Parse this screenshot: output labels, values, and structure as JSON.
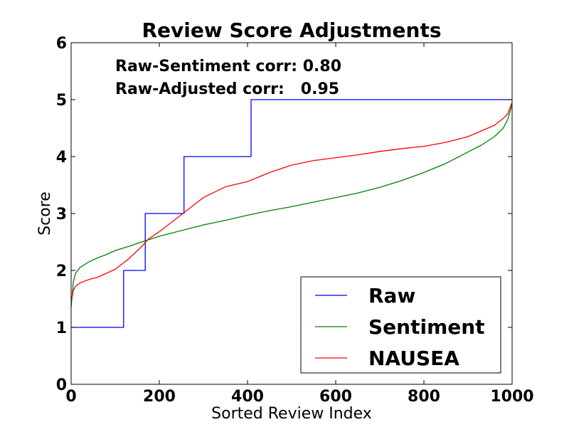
{
  "chart_data": {
    "type": "line",
    "title": "Review Score Adjustments",
    "xlabel": "Sorted Review Index",
    "ylabel": "Score",
    "xlim": [
      0,
      1000
    ],
    "ylim": [
      0,
      6
    ],
    "xticks": [
      0,
      200,
      400,
      600,
      800,
      1000
    ],
    "yticks": [
      0,
      1,
      2,
      3,
      4,
      5,
      6
    ],
    "grid": false,
    "legend_position": "lower-right",
    "annotations": [
      "Raw-Sentiment corr: 0.80",
      "Raw-Adjusted corr:   0.95"
    ],
    "series": [
      {
        "name": "Raw",
        "color": "#0000ff",
        "step": true,
        "x": [
          0,
          119,
          119,
          168,
          168,
          256,
          256,
          408,
          408,
          1000
        ],
        "y": [
          1,
          1,
          2,
          2,
          3,
          3,
          4,
          4,
          5,
          5
        ]
      },
      {
        "name": "Sentiment",
        "color": "#008000",
        "x": [
          0,
          5,
          10,
          20,
          40,
          60,
          80,
          100,
          130,
          160,
          200,
          250,
          300,
          350,
          400,
          450,
          500,
          550,
          600,
          650,
          700,
          750,
          800,
          850,
          900,
          930,
          960,
          980,
          990,
          1000
        ],
        "y": [
          1.35,
          1.8,
          1.95,
          2.05,
          2.15,
          2.22,
          2.28,
          2.35,
          2.42,
          2.5,
          2.6,
          2.7,
          2.8,
          2.88,
          2.97,
          3.05,
          3.12,
          3.2,
          3.28,
          3.36,
          3.46,
          3.58,
          3.72,
          3.88,
          4.08,
          4.2,
          4.35,
          4.5,
          4.65,
          4.92
        ]
      },
      {
        "name": "NAUSEA",
        "color": "#ff0000",
        "x": [
          0,
          5,
          10,
          20,
          40,
          60,
          80,
          100,
          130,
          160,
          175,
          200,
          250,
          300,
          350,
          400,
          450,
          500,
          550,
          600,
          650,
          700,
          750,
          800,
          850,
          900,
          930,
          960,
          980,
          990,
          1000
        ],
        "y": [
          1.45,
          1.65,
          1.72,
          1.78,
          1.84,
          1.88,
          1.95,
          2.02,
          2.2,
          2.42,
          2.55,
          2.68,
          2.98,
          3.28,
          3.47,
          3.56,
          3.72,
          3.85,
          3.93,
          3.98,
          4.03,
          4.09,
          4.14,
          4.18,
          4.25,
          4.35,
          4.45,
          4.55,
          4.67,
          4.75,
          4.95
        ]
      }
    ]
  }
}
